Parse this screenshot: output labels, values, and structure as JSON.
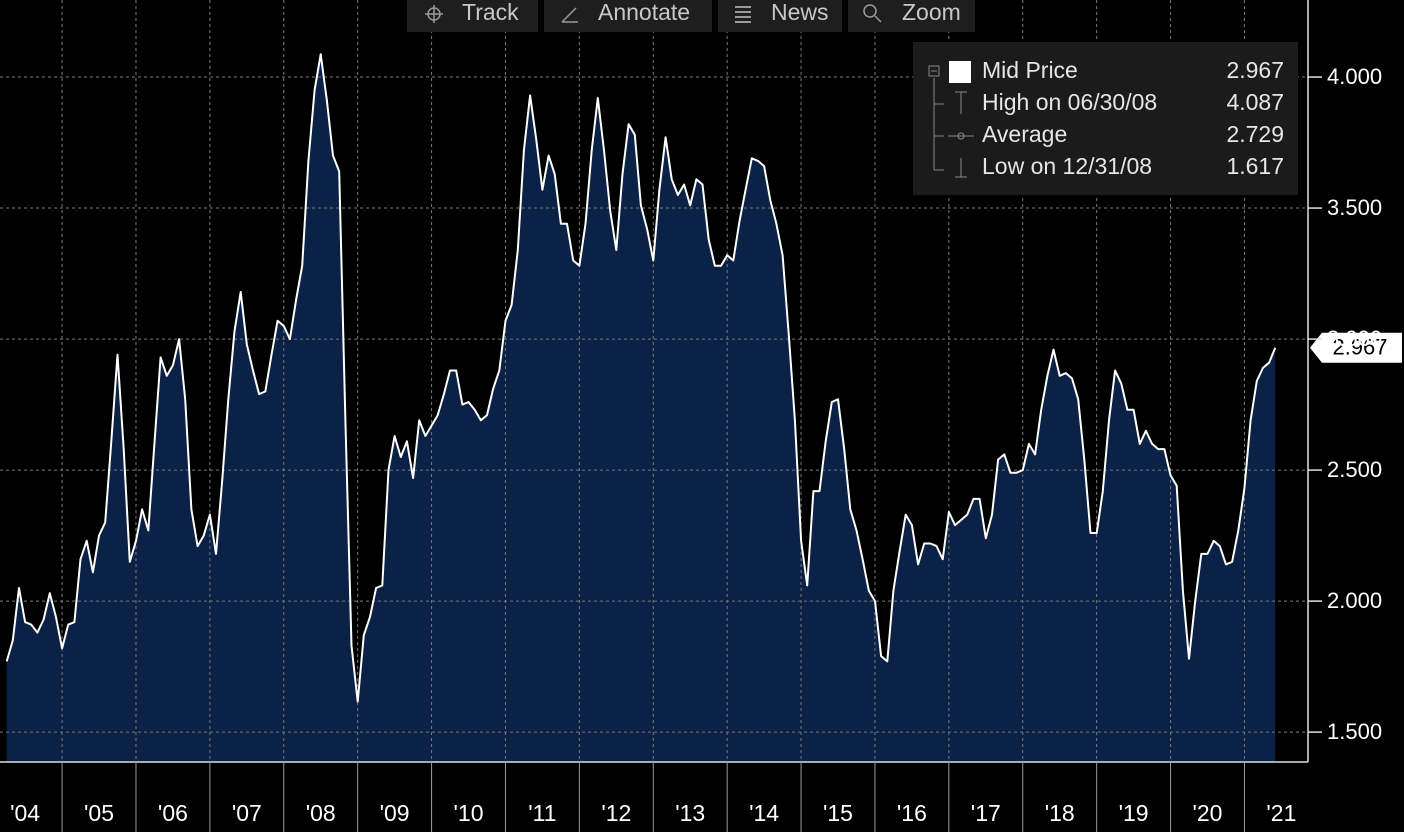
{
  "toolbar": [
    "Track",
    "Annotate",
    "News",
    "Zoom"
  ],
  "chart_data": {
    "type": "area",
    "x": [
      "2004-03",
      "2004-04",
      "2004-05",
      "2004-06",
      "2004-07",
      "2004-08",
      "2004-09",
      "2004-10",
      "2004-11",
      "2004-12",
      "2005-01",
      "2005-02",
      "2005-03",
      "2005-04",
      "2005-05",
      "2005-06",
      "2005-07",
      "2005-08",
      "2005-09",
      "2005-10",
      "2005-11",
      "2005-12",
      "2006-01",
      "2006-02",
      "2006-03",
      "2006-04",
      "2006-05",
      "2006-06",
      "2006-07",
      "2006-08",
      "2006-09",
      "2006-10",
      "2006-11",
      "2006-12",
      "2007-01",
      "2007-02",
      "2007-03",
      "2007-04",
      "2007-05",
      "2007-06",
      "2007-07",
      "2007-08",
      "2007-09",
      "2007-10",
      "2007-11",
      "2007-12",
      "2008-01",
      "2008-02",
      "2008-03",
      "2008-04",
      "2008-05",
      "2008-06",
      "2008-07",
      "2008-08",
      "2008-09",
      "2008-10",
      "2008-11",
      "2008-12",
      "2009-01",
      "2009-02",
      "2009-03",
      "2009-04",
      "2009-05",
      "2009-06",
      "2009-07",
      "2009-08",
      "2009-09",
      "2009-10",
      "2009-11",
      "2009-12",
      "2010-01",
      "2010-02",
      "2010-03",
      "2010-04",
      "2010-05",
      "2010-06",
      "2010-07",
      "2010-08",
      "2010-09",
      "2010-10",
      "2010-11",
      "2010-12",
      "2011-01",
      "2011-02",
      "2011-03",
      "2011-04",
      "2011-05",
      "2011-06",
      "2011-07",
      "2011-08",
      "2011-09",
      "2011-10",
      "2011-11",
      "2011-12",
      "2012-01",
      "2012-02",
      "2012-03",
      "2012-04",
      "2012-05",
      "2012-06",
      "2012-07",
      "2012-08",
      "2012-09",
      "2012-10",
      "2012-11",
      "2012-12",
      "2013-01",
      "2013-02",
      "2013-03",
      "2013-04",
      "2013-05",
      "2013-06",
      "2013-07",
      "2013-08",
      "2013-09",
      "2013-10",
      "2013-11",
      "2013-12",
      "2014-01",
      "2014-02",
      "2014-03",
      "2014-04",
      "2014-05",
      "2014-06",
      "2014-07",
      "2014-08",
      "2014-09",
      "2014-10",
      "2014-11",
      "2014-12",
      "2015-01",
      "2015-02",
      "2015-03",
      "2015-04",
      "2015-05",
      "2015-06",
      "2015-07",
      "2015-08",
      "2015-09",
      "2015-10",
      "2015-11",
      "2015-12",
      "2016-01",
      "2016-02",
      "2016-03",
      "2016-04",
      "2016-05",
      "2016-06",
      "2016-07",
      "2016-08",
      "2016-09",
      "2016-10",
      "2016-11",
      "2016-12",
      "2017-01",
      "2017-02",
      "2017-03",
      "2017-04",
      "2017-05",
      "2017-06",
      "2017-07",
      "2017-08",
      "2017-09",
      "2017-10",
      "2017-11",
      "2017-12",
      "2018-01",
      "2018-02",
      "2018-03",
      "2018-04",
      "2018-05",
      "2018-06",
      "2018-07",
      "2018-08",
      "2018-09",
      "2018-10",
      "2018-11",
      "2018-12",
      "2019-01",
      "2019-02",
      "2019-03",
      "2019-04",
      "2019-05",
      "2019-06",
      "2019-07",
      "2019-08",
      "2019-09",
      "2019-10",
      "2019-11",
      "2019-12",
      "2020-01",
      "2020-02",
      "2020-03",
      "2020-04",
      "2020-05",
      "2020-06",
      "2020-07",
      "2020-08",
      "2020-09",
      "2020-10",
      "2020-11",
      "2020-12",
      "2021-01",
      "2021-02",
      "2021-03",
      "2021-04",
      "2021-05"
    ],
    "series": [
      {
        "name": "Mid Price",
        "color": "#ffffff",
        "fill": "#0b2145",
        "values": [
          1.77,
          1.85,
          2.05,
          1.92,
          1.91,
          1.88,
          1.93,
          2.03,
          1.94,
          1.82,
          1.91,
          1.92,
          2.16,
          2.23,
          2.11,
          2.25,
          2.3,
          2.61,
          2.94,
          2.58,
          2.15,
          2.23,
          2.35,
          2.27,
          2.6,
          2.93,
          2.86,
          2.9,
          3.0,
          2.77,
          2.35,
          2.21,
          2.25,
          2.33,
          2.18,
          2.46,
          2.77,
          3.03,
          3.18,
          2.98,
          2.88,
          2.79,
          2.8,
          2.94,
          3.07,
          3.05,
          3.0,
          3.15,
          3.28,
          3.68,
          3.95,
          4.087,
          3.91,
          3.7,
          3.64,
          2.69,
          1.83,
          1.617,
          1.87,
          1.94,
          2.05,
          2.06,
          2.5,
          2.63,
          2.55,
          2.61,
          2.47,
          2.69,
          2.63,
          2.67,
          2.71,
          2.79,
          2.88,
          2.88,
          2.75,
          2.76,
          2.73,
          2.69,
          2.71,
          2.81,
          2.88,
          3.07,
          3.13,
          3.34,
          3.72,
          3.93,
          3.76,
          3.57,
          3.7,
          3.63,
          3.44,
          3.44,
          3.3,
          3.28,
          3.44,
          3.72,
          3.92,
          3.72,
          3.49,
          3.34,
          3.63,
          3.82,
          3.78,
          3.51,
          3.42,
          3.3,
          3.57,
          3.77,
          3.61,
          3.55,
          3.59,
          3.51,
          3.61,
          3.59,
          3.38,
          3.28,
          3.28,
          3.32,
          3.3,
          3.45,
          3.57,
          3.69,
          3.68,
          3.66,
          3.53,
          3.44,
          3.32,
          3.02,
          2.69,
          2.23,
          2.06,
          2.42,
          2.42,
          2.61,
          2.76,
          2.77,
          2.58,
          2.35,
          2.27,
          2.16,
          2.04,
          2.0,
          1.79,
          1.77,
          2.04,
          2.19,
          2.33,
          2.29,
          2.14,
          2.22,
          2.22,
          2.21,
          2.16,
          2.34,
          2.29,
          2.31,
          2.33,
          2.39,
          2.39,
          2.24,
          2.33,
          2.54,
          2.56,
          2.49,
          2.49,
          2.5,
          2.6,
          2.56,
          2.73,
          2.86,
          2.96,
          2.86,
          2.87,
          2.85,
          2.77,
          2.54,
          2.26,
          2.26,
          2.42,
          2.69,
          2.88,
          2.83,
          2.73,
          2.73,
          2.6,
          2.65,
          2.6,
          2.58,
          2.58,
          2.48,
          2.44,
          2.04,
          1.78,
          2.0,
          2.18,
          2.18,
          2.23,
          2.21,
          2.14,
          2.15,
          2.27,
          2.43,
          2.69,
          2.84,
          2.89,
          2.91,
          2.967
        ]
      }
    ],
    "stats": [
      {
        "label": "High on 06/30/08",
        "value": 4.087
      },
      {
        "label": "Average",
        "value": 2.729
      },
      {
        "label": "Low on 12/31/08",
        "value": 1.617
      }
    ],
    "xlim": [
      2004.16,
      2021.86
    ],
    "ylim": [
      1.386,
      4.294
    ],
    "xticks": [
      {
        "value": 2004,
        "label": "'04"
      },
      {
        "value": 2005,
        "label": "'05"
      },
      {
        "value": 2006,
        "label": "'06"
      },
      {
        "value": 2007,
        "label": "'07"
      },
      {
        "value": 2008,
        "label": "'08"
      },
      {
        "value": 2009,
        "label": "'09"
      },
      {
        "value": 2010,
        "label": "'10"
      },
      {
        "value": 2011,
        "label": "'11"
      },
      {
        "value": 2012,
        "label": "'12"
      },
      {
        "value": 2013,
        "label": "'13"
      },
      {
        "value": 2014,
        "label": "'14"
      },
      {
        "value": 2015,
        "label": "'15"
      },
      {
        "value": 2016,
        "label": "'16"
      },
      {
        "value": 2017,
        "label": "'17"
      },
      {
        "value": 2018,
        "label": "'18"
      },
      {
        "value": 2019,
        "label": "'19"
      },
      {
        "value": 2020,
        "label": "'20"
      },
      {
        "value": 2021,
        "label": "'21"
      }
    ],
    "yticks": [
      {
        "value": 1.5,
        "label": "1.500"
      },
      {
        "value": 2,
        "label": "2.000"
      },
      {
        "value": 2.5,
        "label": "2.500"
      },
      {
        "value": 3,
        "label": "3.000"
      },
      {
        "value": 3.5,
        "label": "3.500"
      },
      {
        "value": 4,
        "label": "4.000"
      }
    ],
    "grid": true,
    "legend": "top-right"
  }
}
